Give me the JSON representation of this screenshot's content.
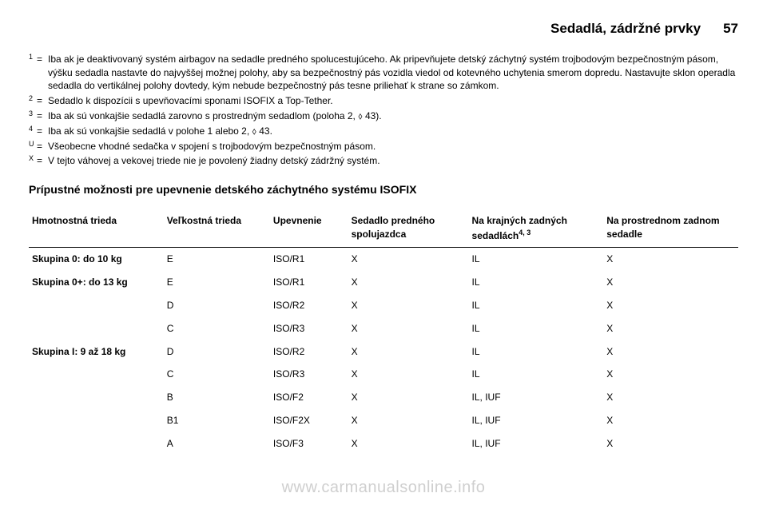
{
  "header": {
    "title": "Sedadlá, zádržné prvky",
    "page": "57"
  },
  "footnotes": [
    {
      "num": "1",
      "text": "Iba ak je deaktivovaný systém airbagov na sedadle predného spolucestujúceho. Ak pripevňujete detský záchytný systém trojbodovým bezpečnostným pásom, výšku sedadla nastavte do najvyššej možnej polohy, aby sa bezpečnostný pás vozidla viedol od kotevného uchytenia smerom dopredu. Nastavujte sklon operadla sedadla do vertikálnej polohy dovtedy, kým nebude bezpečnostný pás tesne priliehať k strane so zámkom."
    },
    {
      "num": "2",
      "text": "Sedadlo k dispozícii s upevňovacími sponami ISOFIX a Top-Tether."
    },
    {
      "num": "3",
      "text": "Iba ak sú vonkajšie sedadlá zarovno s prostredným sedadlom (poloha 2, ⬨ 43)."
    },
    {
      "num": "4",
      "text": "Iba ak sú vonkajšie sedadlá v polohe 1 alebo 2, ⬨ 43."
    },
    {
      "num": "U",
      "text": "Všeobecne vhodné sedačka v spojení s trojbodovým bezpečnostným pásom."
    },
    {
      "num": "X",
      "text": "V tejto váhovej a vekovej triede nie je povolený žiadny detský zádržný systém."
    }
  ],
  "isofix": {
    "title": "Prípustné možnosti pre upevnenie detského záchytného systému ISOFIX",
    "columns": [
      "Hmotnostná trieda",
      "Veľkostná trieda",
      "Upevnenie",
      "Sedadlo predného spolujazdca",
      "Na krajných zadných sedadlách",
      "Na prostrednom zadnom sedadle"
    ],
    "col_sup": [
      "",
      "",
      "",
      "",
      "4, 3",
      ""
    ],
    "rows": [
      {
        "group": "Skupina 0: do 10 kg",
        "size": "E",
        "fix": "ISO/R1",
        "c1": "X",
        "c2": "IL",
        "c3": "X"
      },
      {
        "group": "Skupina 0+: do 13 kg",
        "size": "E",
        "fix": "ISO/R1",
        "c1": "X",
        "c2": "IL",
        "c3": "X"
      },
      {
        "group": "",
        "size": "D",
        "fix": "ISO/R2",
        "c1": "X",
        "c2": "IL",
        "c3": "X"
      },
      {
        "group": "",
        "size": "C",
        "fix": "ISO/R3",
        "c1": "X",
        "c2": "IL",
        "c3": "X"
      },
      {
        "group": "Skupina I: 9 až 18 kg",
        "size": "D",
        "fix": "ISO/R2",
        "c1": "X",
        "c2": "IL",
        "c3": "X"
      },
      {
        "group": "",
        "size": "C",
        "fix": "ISO/R3",
        "c1": "X",
        "c2": "IL",
        "c3": "X"
      },
      {
        "group": "",
        "size": "B",
        "fix": "ISO/F2",
        "c1": "X",
        "c2": "IL, IUF",
        "c3": "X"
      },
      {
        "group": "",
        "size": "B1",
        "fix": "ISO/F2X",
        "c1": "X",
        "c2": "IL, IUF",
        "c3": "X"
      },
      {
        "group": "",
        "size": "A",
        "fix": "ISO/F3",
        "c1": "X",
        "c2": "IL, IUF",
        "c3": "X"
      }
    ]
  },
  "watermark": "www.carmanualsonline.info",
  "style": {
    "bg": "#ffffff",
    "text": "#000000",
    "watermark_color": "#cfcfcf",
    "border": "#000000"
  }
}
